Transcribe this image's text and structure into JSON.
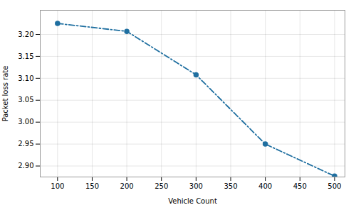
{
  "chart_data": {
    "type": "line",
    "x": [
      100,
      200,
      300,
      400,
      500
    ],
    "values": [
      3.225,
      3.207,
      3.108,
      2.95,
      2.877
    ],
    "color": "#1f6fa0",
    "marker": "circle",
    "line_style": "dashdot",
    "xlabel": "Vehicle Count",
    "ylabel": "Packet loss rate",
    "xlim": [
      75,
      515
    ],
    "ylim": [
      2.875,
      3.255
    ],
    "xticks": [
      100,
      150,
      200,
      250,
      300,
      350,
      400,
      450,
      500
    ],
    "yticks": [
      {
        "value": 2.9,
        "label": "2.90"
      },
      2.95,
      {
        "value": 3.0,
        "label": "3.00"
      },
      3.05,
      {
        "value": 3.1,
        "label": "3.10"
      },
      3.15,
      {
        "value": 3.2,
        "label": "3.20"
      }
    ],
    "grid": true
  }
}
